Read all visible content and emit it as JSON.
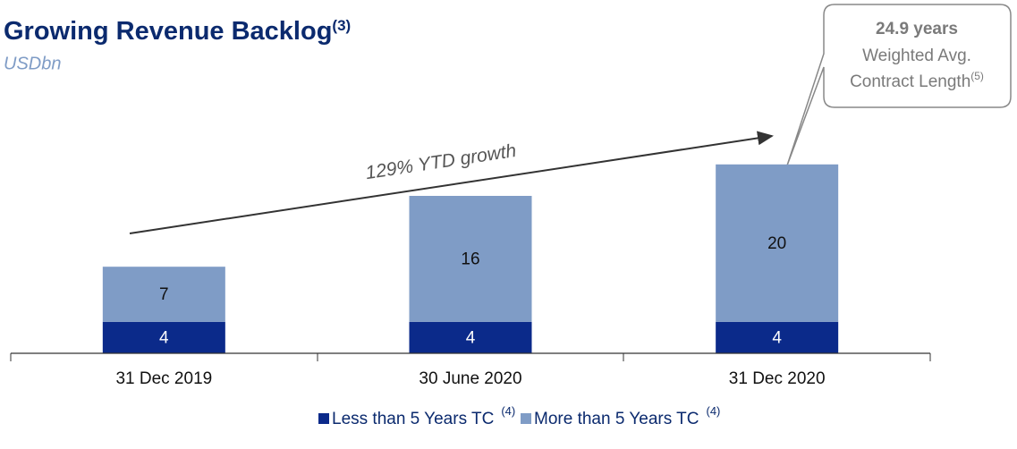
{
  "chart_data": {
    "type": "stacked_bar",
    "title": "Growing Revenue Backlog",
    "title_note": "(3)",
    "subtitle": "USDbn",
    "categories": [
      "31 Dec 2019",
      "30 June 2020",
      "31 Dec 2020"
    ],
    "series": [
      {
        "name": "Less than 5 Years TC",
        "color": "#0b2a8a",
        "values": [
          4,
          4,
          4
        ]
      },
      {
        "name": "More than 5 Years TC",
        "color": "#7f9cc6",
        "values": [
          7,
          16,
          20
        ]
      }
    ],
    "legend_note": "(4)",
    "arrow_annotation": "129% YTD growth",
    "callout": {
      "headline": "24.9 years",
      "line1": "Weighted Avg.",
      "line2": "Contract Length",
      "note": "(5)"
    }
  }
}
